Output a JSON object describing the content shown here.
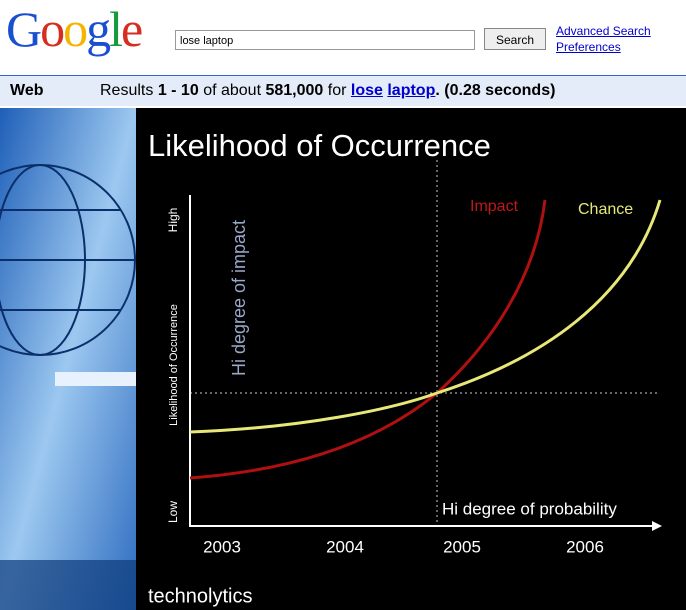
{
  "header": {
    "logo": "Google",
    "query": "lose laptop",
    "button": "Search",
    "links": [
      "Advanced Search",
      "Preferences"
    ]
  },
  "results_bar": {
    "tab": "Web",
    "parts": [
      "Results",
      "1 - 10",
      "of about",
      "581,000",
      "for",
      "lose",
      "laptop",
      ".",
      "(0.28 seconds)"
    ]
  },
  "slide": {
    "title": "Likelihood of Occurrence",
    "y_axis_label": "Likelihood of Occurrence",
    "y_high": "High",
    "y_low": "Low",
    "impact_axis_note": "Hi degree of impact",
    "probability_note": "Hi degree of probability",
    "x_labels": [
      "2003",
      "2004",
      "2005",
      "2006"
    ],
    "impact_label": "Impact",
    "chance_label": "Chance",
    "footer": "technolytics"
  }
}
